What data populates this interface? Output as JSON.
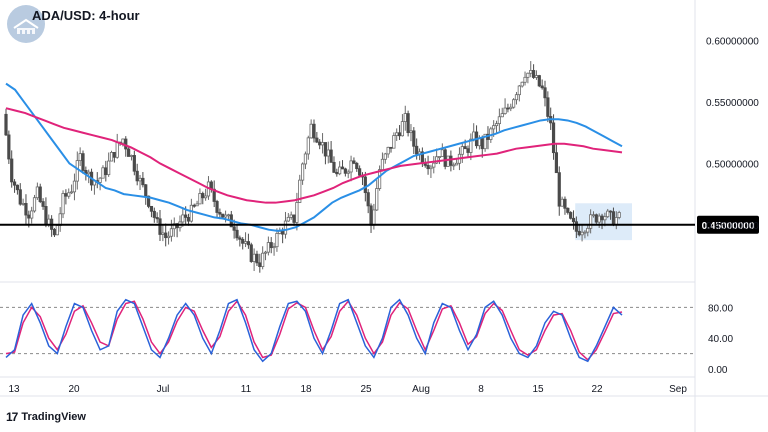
{
  "chart": {
    "title": "ADA/USD: 4-hour",
    "brand": "TradingView",
    "brand_mark": "17"
  },
  "colors": {
    "candle_up": "#6b6b6b",
    "candle_down": "#4a4a4a",
    "ma_fast": "#2a8fe6",
    "ma_slow": "#e0237a",
    "support_line": "#000000",
    "highlight_box": "#cfe2f7",
    "stoch_k": "#2a62d9",
    "stoch_d": "#e0237a",
    "grid_dashed": "#8a8a8a",
    "axis_text": "#131722",
    "badge_bg": "#000000",
    "badge_text": "#ffffff",
    "logo_bg": "#b9cbe0"
  },
  "chart_data": [
    {
      "type": "line",
      "name_in_image": "price panel",
      "x_ticks": [
        "13",
        "20",
        "Jul",
        "11",
        "18",
        "25",
        "Aug",
        "8",
        "15",
        "22",
        "Sep"
      ],
      "y_ticks": [
        "0.60000000",
        "0.55000000",
        "0.50000000",
        "0.45000000"
      ],
      "ylim": [
        0.405,
        0.625
      ],
      "support_level": 0.45,
      "support_label": "0.45000000",
      "series": [
        {
          "type": "candlestick-close",
          "x": [
            "13",
            "14",
            "15",
            "16",
            "17",
            "18",
            "19",
            "20",
            "21",
            "22",
            "23",
            "24",
            "25",
            "26",
            "27",
            "28",
            "29",
            "30",
            "Jul",
            "2",
            "3",
            "4",
            "5",
            "6",
            "7",
            "8",
            "9",
            "10",
            "11",
            "12",
            "13",
            "14",
            "15",
            "16",
            "17",
            "18",
            "19",
            "20",
            "21",
            "22",
            "23",
            "24",
            "25",
            "26",
            "27",
            "28",
            "29",
            "30",
            "31",
            "Aug",
            "2",
            "3",
            "4",
            "5",
            "6",
            "7",
            "8",
            "9",
            "10",
            "11",
            "12",
            "13",
            "14",
            "15",
            "16",
            "17",
            "18",
            "19",
            "20",
            "21",
            "22",
            "23",
            "24"
          ],
          "values": [
            0.54,
            0.49,
            0.47,
            0.46,
            0.475,
            0.455,
            0.44,
            0.47,
            0.48,
            0.505,
            0.49,
            0.485,
            0.495,
            0.51,
            0.52,
            0.505,
            0.485,
            0.47,
            0.45,
            0.44,
            0.445,
            0.455,
            0.46,
            0.47,
            0.48,
            0.465,
            0.455,
            0.45,
            0.435,
            0.425,
            0.42,
            0.43,
            0.44,
            0.45,
            0.455,
            0.5,
            0.53,
            0.52,
            0.505,
            0.49,
            0.495,
            0.505,
            0.49,
            0.45,
            0.495,
            0.51,
            0.525,
            0.535,
            0.515,
            0.505,
            0.5,
            0.51,
            0.5,
            0.505,
            0.51,
            0.52,
            0.515,
            0.525,
            0.535,
            0.545,
            0.56,
            0.575,
            0.57,
            0.56,
            0.53,
            0.47,
            0.455,
            0.445,
            0.45,
            0.455,
            0.46,
            0.455,
            0.455
          ]
        },
        {
          "name": "",
          "type": "moving-average-fast",
          "values": [
            0.565,
            0.56,
            0.55,
            0.54,
            0.53,
            0.52,
            0.51,
            0.5,
            0.495,
            0.49,
            0.485,
            0.48,
            0.478,
            0.475,
            0.474,
            0.473,
            0.472,
            0.47,
            0.468,
            0.465,
            0.462,
            0.46,
            0.458,
            0.456,
            0.455,
            0.453,
            0.451,
            0.45,
            0.448,
            0.446,
            0.445,
            0.446,
            0.448,
            0.452,
            0.456,
            0.462,
            0.468,
            0.472,
            0.475,
            0.478,
            0.482,
            0.488,
            0.494,
            0.498,
            0.502,
            0.506,
            0.508,
            0.51,
            0.512,
            0.514,
            0.516,
            0.518,
            0.52,
            0.522,
            0.524,
            0.527,
            0.529,
            0.531,
            0.533,
            0.535,
            0.536,
            0.536,
            0.535,
            0.533,
            0.53,
            0.526,
            0.522,
            0.518,
            0.514
          ]
        },
        {
          "name": "",
          "type": "moving-average-slow",
          "values": [
            0.545,
            0.543,
            0.541,
            0.538,
            0.535,
            0.532,
            0.529,
            0.527,
            0.525,
            0.523,
            0.521,
            0.519,
            0.516,
            0.513,
            0.509,
            0.505,
            0.5,
            0.496,
            0.492,
            0.488,
            0.484,
            0.48,
            0.477,
            0.474,
            0.472,
            0.47,
            0.469,
            0.468,
            0.468,
            0.469,
            0.47,
            0.472,
            0.474,
            0.477,
            0.48,
            0.484,
            0.487,
            0.49,
            0.492,
            0.494,
            0.496,
            0.498,
            0.499,
            0.5,
            0.501,
            0.502,
            0.503,
            0.504,
            0.505,
            0.506,
            0.507,
            0.508,
            0.51,
            0.512,
            0.513,
            0.514,
            0.515,
            0.516,
            0.516,
            0.515,
            0.514,
            0.512,
            0.511,
            0.51,
            0.509
          ]
        }
      ]
    },
    {
      "type": "line",
      "name_in_image": "stochastic panel",
      "y_ticks": [
        "80.00",
        "40.00",
        "0.00"
      ],
      "ylim": [
        0,
        100
      ],
      "levels": [
        80,
        20
      ],
      "series": [
        {
          "name": "",
          "values": [
            15,
            25,
            70,
            85,
            60,
            30,
            20,
            55,
            85,
            80,
            50,
            25,
            30,
            75,
            90,
            85,
            55,
            25,
            15,
            40,
            70,
            85,
            70,
            40,
            20,
            50,
            85,
            90,
            60,
            25,
            10,
            20,
            55,
            85,
            88,
            75,
            40,
            20,
            50,
            85,
            90,
            60,
            30,
            15,
            40,
            80,
            90,
            70,
            40,
            20,
            60,
            85,
            80,
            50,
            25,
            45,
            80,
            88,
            70,
            40,
            20,
            15,
            30,
            60,
            75,
            70,
            40,
            15,
            10,
            30,
            55,
            80,
            70
          ]
        },
        {
          "name": "",
          "values": [
            20,
            22,
            60,
            80,
            68,
            40,
            25,
            45,
            75,
            82,
            60,
            35,
            30,
            65,
            85,
            88,
            65,
            35,
            20,
            35,
            62,
            80,
            75,
            50,
            28,
            42,
            75,
            88,
            70,
            35,
            15,
            18,
            45,
            78,
            86,
            80,
            50,
            25,
            42,
            75,
            88,
            70,
            40,
            20,
            35,
            70,
            86,
            78,
            50,
            25,
            50,
            78,
            82,
            60,
            32,
            42,
            72,
            85,
            76,
            50,
            25,
            18,
            25,
            50,
            70,
            72,
            50,
            22,
            12,
            25,
            48,
            72,
            74
          ]
        }
      ]
    }
  ]
}
